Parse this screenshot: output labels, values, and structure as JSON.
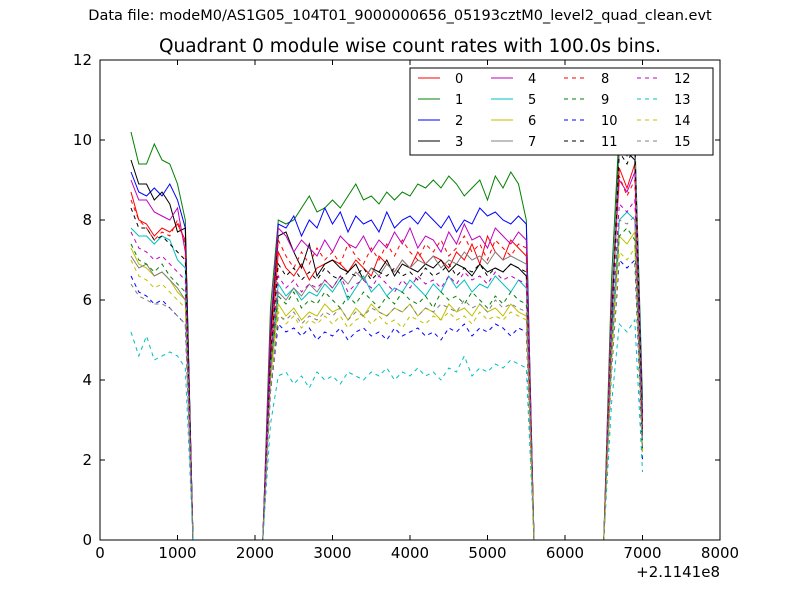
{
  "figure": {
    "suptitle": "Data file: modeM0/AS1G05_104T01_9000000656_05193cztM0_level2_quad_clean.evt",
    "offset_label": "+2.1141e8"
  },
  "chart_data": {
    "type": "line",
    "title": "Quadrant 0 module wise count rates with 100.0s bins.",
    "xlabel": "",
    "ylabel": "",
    "xlim": [
      0,
      8000
    ],
    "ylim": [
      0,
      12
    ],
    "x_offset": "+2.1141e8",
    "xticks": [
      0,
      1000,
      2000,
      3000,
      4000,
      5000,
      6000,
      7000,
      8000
    ],
    "yticks": [
      0,
      2,
      4,
      6,
      8,
      10,
      12
    ],
    "grid": false,
    "legend_position": "top-right",
    "x": [
      400,
      500,
      600,
      700,
      800,
      900,
      1000,
      1100,
      1200,
      1300,
      1400,
      1500,
      1600,
      1700,
      1800,
      1900,
      2000,
      2100,
      2200,
      2300,
      2400,
      2500,
      2600,
      2700,
      2800,
      2900,
      3000,
      3100,
      3200,
      3300,
      3400,
      3500,
      3600,
      3700,
      3800,
      3900,
      4000,
      4100,
      4200,
      4300,
      4400,
      4500,
      4600,
      4700,
      4800,
      4900,
      5000,
      5100,
      5200,
      5300,
      5400,
      5500,
      5600,
      5700,
      5800,
      5900,
      6000,
      6100,
      6200,
      6300,
      6400,
      6500,
      6600,
      6700,
      6800,
      6900,
      7000
    ],
    "series": [
      {
        "name": "0",
        "color": "#ff0000",
        "style": "solid",
        "values": [
          8.7,
          8.0,
          7.9,
          7.6,
          7.8,
          7.7,
          7.9,
          7.5,
          0,
          0,
          0,
          0,
          0,
          0,
          0,
          0,
          0,
          0,
          4.5,
          7.2,
          6.8,
          6.6,
          6.9,
          6.5,
          6.8,
          6.9,
          7.0,
          6.9,
          6.7,
          7.0,
          6.8,
          6.6,
          7.1,
          6.9,
          6.7,
          7.0,
          6.8,
          7.2,
          6.9,
          7.1,
          7.0,
          6.8,
          7.2,
          7.0,
          7.4,
          6.9,
          7.6,
          7.2,
          7.0,
          7.5,
          7.3,
          7.1,
          0,
          0,
          0,
          0,
          0,
          0,
          0,
          0,
          0,
          0,
          5.5,
          9.3,
          8.8,
          9.4,
          3.0
        ]
      },
      {
        "name": "1",
        "color": "#008000",
        "style": "solid",
        "values": [
          10.2,
          9.4,
          9.4,
          9.9,
          9.5,
          9.4,
          8.9,
          8.0,
          0,
          0,
          0,
          0,
          0,
          0,
          0,
          0,
          0,
          0,
          5.8,
          8.0,
          7.9,
          8.0,
          8.3,
          8.6,
          8.2,
          8.3,
          8.5,
          8.3,
          8.6,
          8.9,
          8.5,
          8.6,
          8.4,
          8.7,
          8.5,
          8.7,
          8.6,
          8.9,
          8.8,
          9.0,
          8.8,
          9.1,
          8.9,
          8.6,
          8.8,
          9.0,
          8.5,
          9.1,
          8.8,
          9.2,
          8.9,
          8.0,
          0,
          0,
          0,
          0,
          0,
          0,
          0,
          0,
          0,
          0,
          6.5,
          10.3,
          10.2,
          10.1,
          3.5
        ]
      },
      {
        "name": "2",
        "color": "#0000ff",
        "style": "solid",
        "values": [
          9.2,
          8.7,
          8.6,
          8.8,
          8.6,
          8.9,
          8.5,
          7.8,
          0,
          0,
          0,
          0,
          0,
          0,
          0,
          0,
          0,
          0,
          5.2,
          7.9,
          7.8,
          8.1,
          7.6,
          8.0,
          7.8,
          8.3,
          7.9,
          8.2,
          7.7,
          8.1,
          7.9,
          8.0,
          7.7,
          8.2,
          7.8,
          8.0,
          8.1,
          7.9,
          8.2,
          8.0,
          7.8,
          8.1,
          7.7,
          8.0,
          7.9,
          8.3,
          8.1,
          8.2,
          8.0,
          7.9,
          8.1,
          7.9,
          0,
          0,
          0,
          0,
          0,
          0,
          0,
          0,
          0,
          0,
          5.8,
          9.8,
          9.6,
          9.9,
          3.2
        ]
      },
      {
        "name": "3",
        "color": "#000000",
        "style": "solid",
        "values": [
          9.5,
          8.9,
          8.9,
          8.5,
          8.7,
          8.4,
          7.7,
          7.8,
          0,
          0,
          0,
          0,
          0,
          0,
          0,
          0,
          0,
          0,
          5.0,
          7.6,
          7.7,
          7.2,
          6.8,
          7.4,
          6.6,
          6.9,
          7.0,
          6.8,
          6.7,
          6.9,
          6.5,
          6.8,
          6.7,
          7.0,
          6.6,
          6.9,
          6.8,
          6.7,
          6.9,
          6.8,
          7.0,
          6.7,
          6.9,
          6.8,
          6.6,
          6.9,
          6.7,
          6.8,
          6.7,
          6.9,
          6.8,
          6.6,
          0,
          0,
          0,
          0,
          0,
          0,
          0,
          0,
          0,
          0,
          5.3,
          10.0,
          9.7,
          9.5,
          2.6
        ]
      },
      {
        "name": "4",
        "color": "#bf00bf",
        "style": "solid",
        "values": [
          9.0,
          8.5,
          8.5,
          8.2,
          8.1,
          8.0,
          8.3,
          7.2,
          0,
          0,
          0,
          0,
          0,
          0,
          0,
          0,
          0,
          0,
          5.4,
          7.8,
          7.6,
          7.2,
          7.5,
          7.3,
          7.1,
          7.5,
          7.2,
          7.6,
          7.4,
          7.3,
          7.6,
          7.2,
          7.5,
          7.3,
          7.7,
          7.4,
          7.8,
          7.3,
          7.6,
          7.5,
          7.2,
          7.7,
          7.4,
          7.9,
          7.5,
          7.6,
          7.3,
          7.8,
          7.6,
          7.4,
          7.7,
          7.5,
          0,
          0,
          0,
          0,
          0,
          0,
          0,
          0,
          0,
          0,
          6.0,
          9.0,
          8.7,
          9.2,
          3.0
        ]
      },
      {
        "name": "5",
        "color": "#00bfbf",
        "style": "solid",
        "values": [
          7.8,
          7.6,
          7.6,
          7.4,
          7.6,
          7.5,
          7.0,
          6.8,
          0,
          0,
          0,
          0,
          0,
          0,
          0,
          0,
          0,
          0,
          4.4,
          6.4,
          6.1,
          6.3,
          6.0,
          6.2,
          6.1,
          6.4,
          6.2,
          6.5,
          6.0,
          6.3,
          6.6,
          6.2,
          6.4,
          6.1,
          6.3,
          6.2,
          6.5,
          6.3,
          6.1,
          6.4,
          6.2,
          6.6,
          6.3,
          6.5,
          6.2,
          6.4,
          6.3,
          6.6,
          6.4,
          6.2,
          6.5,
          6.3,
          0,
          0,
          0,
          0,
          0,
          0,
          0,
          0,
          0,
          0,
          5.0,
          8.0,
          8.2,
          8.0,
          2.5
        ]
      },
      {
        "name": "6",
        "color": "#bfbf00",
        "style": "solid",
        "values": [
          7.3,
          6.9,
          6.8,
          6.6,
          6.7,
          6.5,
          6.2,
          6.0,
          0,
          0,
          0,
          0,
          0,
          0,
          0,
          0,
          0,
          0,
          4.0,
          5.9,
          5.6,
          5.8,
          5.5,
          5.7,
          5.6,
          5.9,
          5.7,
          5.8,
          5.5,
          5.8,
          5.6,
          5.9,
          5.7,
          5.6,
          5.8,
          5.7,
          5.9,
          5.6,
          5.8,
          5.7,
          5.5,
          5.9,
          5.7,
          5.8,
          5.6,
          5.9,
          5.7,
          5.8,
          5.6,
          5.9,
          5.7,
          5.6,
          0,
          0,
          0,
          0,
          0,
          0,
          0,
          0,
          0,
          0,
          4.6,
          7.6,
          7.4,
          7.7,
          2.2
        ]
      },
      {
        "name": "7",
        "color": "#808080",
        "style": "solid",
        "values": [
          7.1,
          6.8,
          6.9,
          6.6,
          6.7,
          6.5,
          6.3,
          6.0,
          0,
          0,
          0,
          0,
          0,
          0,
          0,
          0,
          0,
          0,
          4.2,
          6.2,
          6.0,
          6.3,
          6.1,
          6.4,
          6.2,
          6.5,
          6.3,
          6.6,
          6.4,
          6.7,
          6.5,
          6.8,
          6.6,
          6.9,
          6.7,
          7.0,
          6.8,
          7.0,
          6.9,
          7.1,
          6.8,
          7.0,
          6.9,
          7.2,
          7.0,
          7.1,
          6.9,
          7.2,
          7.0,
          7.1,
          7.0,
          6.9,
          0,
          0,
          0,
          0,
          0,
          0,
          0,
          0,
          0,
          0,
          5.6,
          9.8,
          9.6,
          10.0,
          2.8
        ]
      },
      {
        "name": "8",
        "color": "#ff0000",
        "style": "dashed",
        "values": [
          8.5,
          8.0,
          7.8,
          7.5,
          7.7,
          7.6,
          8.0,
          7.4,
          0,
          0,
          0,
          0,
          0,
          0,
          0,
          0,
          0,
          0,
          4.8,
          7.5,
          7.1,
          6.8,
          7.2,
          6.9,
          7.3,
          7.0,
          7.2,
          6.9,
          7.4,
          7.1,
          6.9,
          7.3,
          7.0,
          7.4,
          7.1,
          7.5,
          7.2,
          7.0,
          7.4,
          7.2,
          7.5,
          7.1,
          7.3,
          7.6,
          7.2,
          7.4,
          7.0,
          7.5,
          7.3,
          7.1,
          7.4,
          7.3,
          0,
          0,
          0,
          0,
          0,
          0,
          0,
          0,
          0,
          0,
          5.6,
          9.1,
          8.6,
          9.0,
          2.9
        ]
      },
      {
        "name": "9",
        "color": "#008000",
        "style": "dashed",
        "values": [
          7.4,
          7.0,
          6.9,
          6.7,
          6.9,
          6.6,
          6.4,
          6.2,
          0,
          0,
          0,
          0,
          0,
          0,
          0,
          0,
          0,
          0,
          4.3,
          6.1,
          5.9,
          6.2,
          5.8,
          6.0,
          5.9,
          6.2,
          6.0,
          5.8,
          6.1,
          5.9,
          6.2,
          6.0,
          5.8,
          6.1,
          5.9,
          6.2,
          6.0,
          5.9,
          6.1,
          5.8,
          6.2,
          6.0,
          6.1,
          5.9,
          6.2,
          6.0,
          5.8,
          6.1,
          5.9,
          6.2,
          6.0,
          5.9,
          0,
          0,
          0,
          0,
          0,
          0,
          0,
          0,
          0,
          0,
          4.8,
          7.6,
          7.8,
          7.5,
          2.3
        ]
      },
      {
        "name": "10",
        "color": "#0000ff",
        "style": "dashed",
        "values": [
          6.6,
          6.2,
          6.1,
          5.9,
          6.0,
          5.8,
          5.6,
          5.4,
          0,
          0,
          0,
          0,
          0,
          0,
          0,
          0,
          0,
          0,
          3.7,
          5.4,
          5.2,
          5.3,
          5.1,
          5.3,
          5.0,
          5.2,
          5.1,
          5.3,
          5.0,
          5.2,
          5.3,
          5.1,
          5.2,
          5.0,
          5.3,
          5.1,
          5.2,
          5.3,
          5.1,
          5.2,
          5.0,
          5.3,
          5.2,
          5.4,
          5.1,
          5.3,
          5.2,
          5.4,
          5.3,
          5.1,
          5.3,
          5.2,
          0,
          0,
          0,
          0,
          0,
          0,
          0,
          0,
          0,
          0,
          4.2,
          7.0,
          6.8,
          7.0,
          2.0
        ]
      },
      {
        "name": "11",
        "color": "#000000",
        "style": "dashed",
        "values": [
          8.3,
          7.8,
          7.8,
          7.5,
          7.6,
          7.4,
          7.2,
          7.0,
          0,
          0,
          0,
          0,
          0,
          0,
          0,
          0,
          0,
          0,
          4.6,
          6.9,
          6.6,
          6.8,
          6.5,
          6.7,
          6.5,
          6.8,
          6.6,
          6.5,
          6.7,
          6.6,
          6.8,
          6.5,
          6.7,
          6.6,
          6.8,
          6.6,
          6.7,
          6.5,
          6.8,
          6.6,
          6.7,
          6.9,
          6.6,
          6.8,
          6.7,
          6.9,
          6.6,
          6.8,
          6.7,
          6.9,
          6.8,
          6.7,
          0,
          0,
          0,
          0,
          0,
          0,
          0,
          0,
          0,
          0,
          5.4,
          9.7,
          9.4,
          9.9,
          2.7
        ]
      },
      {
        "name": "12",
        "color": "#bf00bf",
        "style": "dashed",
        "values": [
          7.7,
          7.3,
          7.2,
          7.0,
          7.1,
          6.9,
          6.7,
          6.5,
          0,
          0,
          0,
          0,
          0,
          0,
          0,
          0,
          0,
          0,
          4.4,
          6.6,
          6.3,
          6.5,
          6.2,
          6.4,
          6.3,
          6.5,
          6.3,
          6.6,
          6.2,
          6.4,
          6.5,
          6.3,
          6.6,
          6.4,
          6.2,
          6.5,
          6.3,
          6.6,
          6.4,
          6.5,
          6.3,
          6.6,
          6.4,
          6.7,
          6.5,
          6.6,
          6.4,
          6.7,
          6.5,
          6.6,
          6.5,
          6.4,
          0,
          0,
          0,
          0,
          0,
          0,
          0,
          0,
          0,
          0,
          5.2,
          8.4,
          8.2,
          8.5,
          2.5
        ]
      },
      {
        "name": "13",
        "color": "#00bfbf",
        "style": "dashed",
        "values": [
          5.2,
          4.6,
          5.1,
          4.5,
          4.6,
          4.7,
          4.6,
          4.3,
          0,
          0,
          0,
          0,
          0,
          0,
          0,
          0,
          0,
          0,
          2.9,
          4.1,
          4.2,
          3.9,
          4.1,
          3.8,
          4.2,
          4.0,
          4.1,
          3.9,
          4.2,
          4.1,
          4.0,
          4.2,
          4.1,
          4.3,
          4.0,
          4.2,
          4.1,
          4.3,
          4.1,
          4.2,
          4.0,
          4.3,
          4.2,
          4.6,
          4.1,
          4.3,
          4.2,
          4.4,
          4.3,
          4.5,
          4.4,
          4.3,
          0,
          0,
          0,
          0,
          0,
          0,
          0,
          0,
          0,
          0,
          3.4,
          5.4,
          5.2,
          5.5,
          1.7
        ]
      },
      {
        "name": "14",
        "color": "#bfbf00",
        "style": "dashed",
        "values": [
          7.0,
          6.6,
          6.5,
          6.3,
          6.4,
          6.2,
          6.0,
          5.8,
          0,
          0,
          0,
          0,
          0,
          0,
          0,
          0,
          0,
          0,
          3.8,
          5.7,
          5.4,
          5.6,
          5.3,
          5.5,
          5.4,
          5.6,
          5.4,
          5.6,
          5.3,
          5.5,
          5.6,
          5.4,
          5.6,
          5.4,
          5.5,
          5.3,
          5.6,
          5.5,
          5.4,
          5.6,
          5.5,
          5.7,
          5.5,
          5.6,
          5.4,
          5.7,
          5.5,
          5.6,
          5.5,
          5.7,
          5.6,
          5.5,
          0,
          0,
          0,
          0,
          0,
          0,
          0,
          0,
          0,
          0,
          4.3,
          7.2,
          7.0,
          7.3,
          2.1
        ]
      },
      {
        "name": "15",
        "color": "#808080",
        "style": "dashed",
        "values": [
          6.4,
          6.1,
          6.0,
          5.9,
          5.9,
          5.8,
          5.6,
          5.4,
          0,
          0,
          0,
          0,
          0,
          0,
          0,
          0,
          0,
          0,
          3.7,
          5.6,
          5.5,
          5.7,
          5.4,
          5.6,
          5.5,
          5.7,
          5.6,
          5.8,
          5.5,
          5.7,
          5.6,
          5.8,
          5.7,
          5.6,
          5.8,
          5.7,
          5.9,
          5.6,
          5.8,
          5.7,
          5.9,
          5.8,
          5.7,
          6.0,
          5.8,
          5.9,
          5.7,
          6.0,
          5.8,
          5.9,
          5.8,
          5.7,
          0,
          0,
          0,
          0,
          0,
          0,
          0,
          0,
          0,
          0,
          4.4,
          8.0,
          7.9,
          8.1,
          2.3
        ]
      }
    ]
  }
}
